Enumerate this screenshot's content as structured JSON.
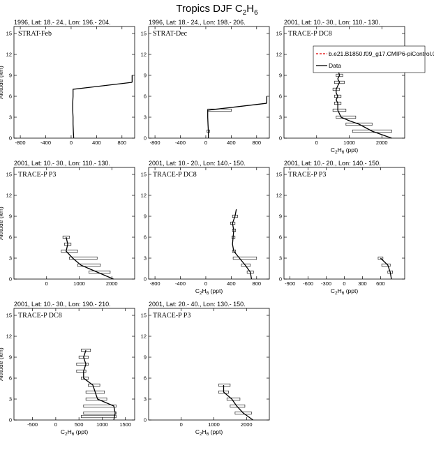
{
  "title": {
    "prefix": "Tropics DJF C",
    "sub": "2",
    "mid": "H",
    "sub2": "6"
  },
  "legend": {
    "model": "b.e21.B1850.f09_g17.CMIP6-piControl.001",
    "data": "Data",
    "model_color": "#e00000",
    "data_color": "#000000"
  },
  "axis_labels": {
    "y": "Altitude (km)",
    "x_prefix": "C",
    "x_sub1": "2",
    "x_mid": "H",
    "x_sub2": "6",
    "x_suffix": " (ppt)"
  },
  "chart_data": [
    {
      "type": "line",
      "header": "1996, Lat: 18.- 24., Lon: 196.- 204.",
      "campaign": "STRAT-Feb",
      "xlim": [
        -900,
        1000
      ],
      "xticks": [
        -800,
        -400,
        0,
        400,
        800
      ],
      "ylim": [
        0,
        16
      ],
      "yticks": [
        0,
        3,
        6,
        9,
        12,
        15
      ],
      "show_ylabel": true,
      "show_xlabel": false,
      "data": [
        {
          "y": 0,
          "x": 40
        },
        {
          "y": 1,
          "x": 35
        },
        {
          "y": 2,
          "x": 30
        },
        {
          "y": 3,
          "x": 30
        },
        {
          "y": 4,
          "x": 25
        },
        {
          "y": 5,
          "x": 25
        },
        {
          "y": 6,
          "x": 30
        },
        {
          "y": 7,
          "x": 30
        },
        {
          "y": 8,
          "x": 960
        }
      ],
      "errors": [],
      "extra_segments": [
        {
          "y0": 8,
          "y1": 9,
          "x0": 960,
          "x1": 960
        }
      ]
    },
    {
      "type": "line",
      "header": "1996, Lat: 18.- 24., Lon: 198.- 206.",
      "campaign": "STRAT-Dec",
      "xlim": [
        -900,
        1000
      ],
      "xticks": [
        -800,
        -400,
        0,
        400,
        800
      ],
      "ylim": [
        0,
        16
      ],
      "yticks": [
        0,
        3,
        6,
        9,
        12,
        15
      ],
      "show_ylabel": false,
      "show_xlabel": false,
      "data": [
        {
          "y": 0,
          "x": 40
        },
        {
          "y": 1,
          "x": 40
        },
        {
          "y": 2,
          "x": 35
        },
        {
          "y": 3,
          "x": 30
        },
        {
          "y": 4,
          "x": 30
        },
        {
          "y": 5,
          "x": 960
        }
      ],
      "errors": [
        {
          "y": 1,
          "lo": 20,
          "hi": 60
        },
        {
          "y": 4,
          "lo": 30,
          "hi": 400
        }
      ],
      "extra_segments": [
        {
          "y0": 5,
          "y1": 6,
          "x0": 960,
          "x1": 960
        }
      ]
    },
    {
      "type": "line",
      "header": "2001, Lat: 10.- 30., Lon: 110.- 130.",
      "campaign": "TRACE-P DC8",
      "xlim": [
        -1000,
        2700
      ],
      "xticks": [
        0,
        1000,
        2000
      ],
      "ylim": [
        0,
        16
      ],
      "yticks": [
        0,
        3,
        6,
        9,
        12,
        15
      ],
      "show_ylabel": false,
      "show_xlabel": true,
      "legend": true,
      "data": [
        {
          "y": 10,
          "x": 650
        },
        {
          "y": 9,
          "x": 700
        },
        {
          "y": 8.5,
          "x": 650
        },
        {
          "y": 8,
          "x": 700
        },
        {
          "y": 7.5,
          "x": 650
        },
        {
          "y": 7,
          "x": 600
        },
        {
          "y": 6.5,
          "x": 600
        },
        {
          "y": 6,
          "x": 650
        },
        {
          "y": 5.5,
          "x": 600
        },
        {
          "y": 5,
          "x": 650
        },
        {
          "y": 4.5,
          "x": 650
        },
        {
          "y": 4,
          "x": 650
        },
        {
          "y": 3.5,
          "x": 700
        },
        {
          "y": 3,
          "x": 750
        },
        {
          "y": 2.5,
          "x": 1000
        },
        {
          "y": 2,
          "x": 1300
        },
        {
          "y": 1.5,
          "x": 1500
        },
        {
          "y": 1,
          "x": 1700
        },
        {
          "y": 0.5,
          "x": 2000
        },
        {
          "y": 0,
          "x": 2300
        }
      ],
      "errors": [
        {
          "y": 10,
          "lo": 550,
          "hi": 750
        },
        {
          "y": 9,
          "lo": 600,
          "hi": 800
        },
        {
          "y": 8,
          "lo": 550,
          "hi": 850
        },
        {
          "y": 7,
          "lo": 500,
          "hi": 700
        },
        {
          "y": 6,
          "lo": 550,
          "hi": 750
        },
        {
          "y": 5,
          "lo": 550,
          "hi": 750
        },
        {
          "y": 4,
          "lo": 500,
          "hi": 900
        },
        {
          "y": 3,
          "lo": 600,
          "hi": 1200
        },
        {
          "y": 2,
          "lo": 900,
          "hi": 1700
        },
        {
          "y": 1,
          "lo": 1100,
          "hi": 2300
        }
      ],
      "extra_segments": []
    },
    {
      "type": "line",
      "header": "2001, Lat: 10.- 30., Lon: 110.- 130.",
      "campaign": "TRACE-P P3",
      "xlim": [
        -1000,
        2700
      ],
      "xticks": [
        0,
        1000,
        2000
      ],
      "ylim": [
        0,
        16
      ],
      "yticks": [
        0,
        3,
        6,
        9,
        12,
        15
      ],
      "show_ylabel": true,
      "show_xlabel": false,
      "data": [
        {
          "y": 6,
          "x": 600
        },
        {
          "y": 5,
          "x": 650
        },
        {
          "y": 4,
          "x": 600
        },
        {
          "y": 3,
          "x": 800
        },
        {
          "y": 2,
          "x": 1050
        },
        {
          "y": 1,
          "x": 1550
        },
        {
          "y": 0,
          "x": 2050
        }
      ],
      "errors": [
        {
          "y": 6,
          "lo": 500,
          "hi": 700
        },
        {
          "y": 5,
          "lo": 550,
          "hi": 750
        },
        {
          "y": 4,
          "lo": 450,
          "hi": 950
        },
        {
          "y": 3,
          "lo": 700,
          "hi": 1550
        },
        {
          "y": 2,
          "lo": 950,
          "hi": 1650
        },
        {
          "y": 1,
          "lo": 1300,
          "hi": 1950
        }
      ],
      "extra_segments": []
    },
    {
      "type": "line",
      "header": "2001, Lat: 10.- 20., Lon: 140.- 150.",
      "campaign": "TRACE-P DC8",
      "xlim": [
        -900,
        1000
      ],
      "xticks": [
        -800,
        -400,
        0,
        400,
        800
      ],
      "ylim": [
        0,
        16
      ],
      "yticks": [
        0,
        3,
        6,
        9,
        12,
        15
      ],
      "show_ylabel": false,
      "show_xlabel": true,
      "data": [
        {
          "y": 10,
          "x": 480
        },
        {
          "y": 9,
          "x": 460
        },
        {
          "y": 8,
          "x": 420
        },
        {
          "y": 7,
          "x": 440
        },
        {
          "y": 6,
          "x": 430
        },
        {
          "y": 5,
          "x": 420
        },
        {
          "y": 4,
          "x": 440
        },
        {
          "y": 3,
          "x": 530
        },
        {
          "y": 2,
          "x": 620
        },
        {
          "y": 1,
          "x": 700
        },
        {
          "y": 0,
          "x": 720
        }
      ],
      "errors": [
        {
          "y": 9,
          "lo": 420,
          "hi": 500
        },
        {
          "y": 8,
          "lo": 390,
          "hi": 460
        },
        {
          "y": 7,
          "lo": 420,
          "hi": 470
        },
        {
          "y": 6,
          "lo": 410,
          "hi": 460
        },
        {
          "y": 4,
          "lo": 420,
          "hi": 470
        },
        {
          "y": 3,
          "lo": 430,
          "hi": 800
        },
        {
          "y": 2,
          "lo": 560,
          "hi": 700
        },
        {
          "y": 1,
          "lo": 650,
          "hi": 750
        }
      ],
      "extra_segments": []
    },
    {
      "type": "line",
      "header": "2001, Lat: 10.- 20., Lon: 140.- 150.",
      "campaign": "TRACE-P P3",
      "xlim": [
        -1000,
        1000
      ],
      "xticks": [
        -900,
        -600,
        -300,
        0,
        300,
        600
      ],
      "ylim": [
        0,
        16
      ],
      "yticks": [
        0,
        3,
        6,
        9,
        12,
        15
      ],
      "show_ylabel": false,
      "show_xlabel": true,
      "data": [
        {
          "y": 3,
          "x": 600
        },
        {
          "y": 2,
          "x": 720
        },
        {
          "y": 1,
          "x": 760
        },
        {
          "y": 0,
          "x": 780
        }
      ],
      "errors": [
        {
          "y": 3,
          "lo": 560,
          "hi": 640
        },
        {
          "y": 2,
          "lo": 620,
          "hi": 760
        },
        {
          "y": 1,
          "lo": 720,
          "hi": 800
        }
      ],
      "extra_segments": []
    },
    {
      "type": "line",
      "header": "2001, Lat: 10.- 30., Lon: 190.- 210.",
      "campaign": "TRACE-P DC8",
      "xlim": [
        -900,
        1700
      ],
      "xticks": [
        -500,
        0,
        500,
        1000,
        1500
      ],
      "ylim": [
        0,
        16
      ],
      "yticks": [
        0,
        3,
        6,
        9,
        12,
        15
      ],
      "show_ylabel": true,
      "show_xlabel": true,
      "data": [
        {
          "y": 10,
          "x": 650
        },
        {
          "y": 9,
          "x": 600
        },
        {
          "y": 8,
          "x": 650
        },
        {
          "y": 7,
          "x": 600
        },
        {
          "y": 6,
          "x": 600
        },
        {
          "y": 5,
          "x": 800
        },
        {
          "y": 4,
          "x": 850
        },
        {
          "y": 3,
          "x": 900
        },
        {
          "y": 2,
          "x": 1250
        },
        {
          "y": 1,
          "x": 1280
        },
        {
          "y": 0,
          "x": 1250
        }
      ],
      "errors": [
        {
          "y": 10,
          "lo": 550,
          "hi": 750
        },
        {
          "y": 9,
          "lo": 500,
          "hi": 700
        },
        {
          "y": 8,
          "lo": 450,
          "hi": 700
        },
        {
          "y": 7,
          "lo": 450,
          "hi": 650
        },
        {
          "y": 6,
          "lo": 550,
          "hi": 700
        },
        {
          "y": 5,
          "lo": 700,
          "hi": 950
        },
        {
          "y": 4,
          "lo": 650,
          "hi": 1050
        },
        {
          "y": 3,
          "lo": 650,
          "hi": 1100
        },
        {
          "y": 2,
          "lo": 600,
          "hi": 1300
        },
        {
          "y": 1,
          "lo": 600,
          "hi": 1300
        },
        {
          "y": 0.5,
          "lo": 550,
          "hi": 1300
        }
      ],
      "extra_segments": []
    },
    {
      "type": "line",
      "header": "2001, Lat: 20.- 40., Lon: 130.- 150.",
      "campaign": "TRACE-P P3",
      "xlim": [
        -1000,
        2700
      ],
      "xticks": [
        0,
        1000,
        2000
      ],
      "ylim": [
        0,
        16
      ],
      "yticks": [
        0,
        3,
        6,
        9,
        12,
        15
      ],
      "show_ylabel": false,
      "show_xlabel": true,
      "data": [
        {
          "y": 5,
          "x": 1300
        },
        {
          "y": 4,
          "x": 1300
        },
        {
          "y": 3,
          "x": 1550
        },
        {
          "y": 2,
          "x": 1700
        },
        {
          "y": 1,
          "x": 1900
        },
        {
          "y": 0,
          "x": 2200
        }
      ],
      "errors": [
        {
          "y": 5,
          "lo": 1150,
          "hi": 1500
        },
        {
          "y": 4,
          "lo": 1150,
          "hi": 1450
        },
        {
          "y": 3,
          "lo": 1400,
          "hi": 1800
        },
        {
          "y": 2,
          "lo": 1500,
          "hi": 1950
        },
        {
          "y": 1,
          "lo": 1650,
          "hi": 2150
        }
      ],
      "extra_segments": []
    }
  ]
}
